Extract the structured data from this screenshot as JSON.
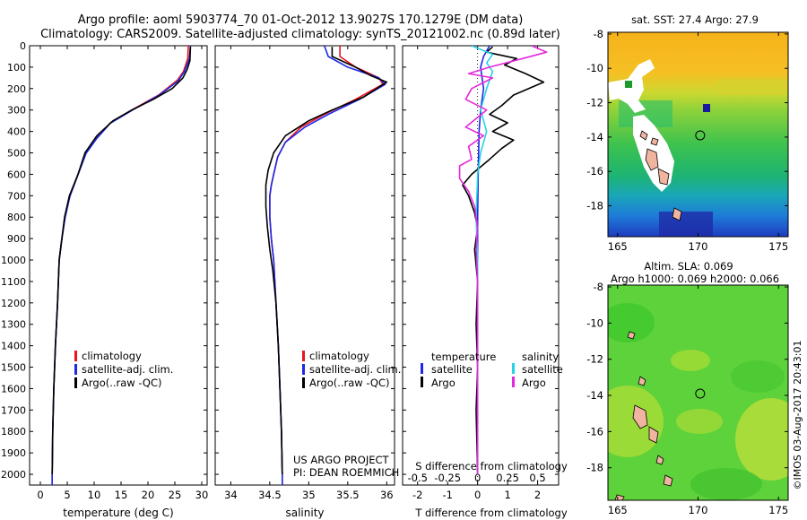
{
  "title_line1": "Argo profile: aoml 5903774_70 01-Oct-2012 13.9027S 170.1279E (DM data)",
  "title_line2": "Climatology: CARS2009. Satellite-adjusted climatology: synTS_20121002.nc (0.89d later)",
  "credit_project": "US ARGO PROJECT",
  "credit_pi": "PI: DEAN ROEMMICH",
  "imos_stamp": "©IMOS 03-Aug-2017 20:43:01",
  "colors": {
    "climatology": "#e8141e",
    "satellite": "#1e28e6",
    "argo": "#000000",
    "argo_salinity_diff": "#e628dc",
    "satellite_salinity_diff": "#28d2e6"
  },
  "chart_data": [
    {
      "type": "line",
      "name": "temperature-profile",
      "xlabel": "temperature (deg C)",
      "xlim": [
        -2,
        31
      ],
      "xticks": [
        0,
        5,
        10,
        15,
        20,
        25,
        30
      ],
      "xtick_labels": [
        "0",
        "5",
        "10",
        "15",
        "20",
        "25",
        "30"
      ],
      "ylim": [
        0,
        2050
      ],
      "yticks": [
        0,
        100,
        200,
        300,
        400,
        500,
        600,
        700,
        800,
        900,
        1000,
        1100,
        1200,
        1300,
        1400,
        1500,
        1600,
        1700,
        1800,
        1900,
        2000
      ],
      "ytick_labels": [
        "0",
        "100",
        "200",
        "300",
        "400",
        "500",
        "600",
        "700",
        "800",
        "900",
        "1000",
        "1100",
        "1200",
        "1300",
        "1400",
        "1500",
        "1600",
        "1700",
        "1800",
        "1900",
        "2000"
      ],
      "yreversed": true,
      "legend": [
        "climatology",
        "satellite-adj. clim.",
        "Argo(..raw -QC)"
      ],
      "series": [
        {
          "name": "climatology",
          "color_key": "climatology",
          "points": [
            [
              27.5,
              0
            ],
            [
              27.4,
              60
            ],
            [
              26.6,
              120
            ],
            [
              25.5,
              160
            ],
            [
              22,
              230
            ],
            [
              17,
              300
            ],
            [
              13,
              360
            ],
            [
              10.5,
              430
            ],
            [
              8.5,
              500
            ],
            [
              7,
              600
            ],
            [
              5.5,
              700
            ],
            [
              4.6,
              800
            ],
            [
              4,
              900
            ],
            [
              3.5,
              1000
            ],
            [
              3.2,
              1200
            ],
            [
              2.8,
              1400
            ],
            [
              2.5,
              1600
            ],
            [
              2.3,
              1800
            ],
            [
              2.2,
              2000
            ],
            [
              2.2,
              2050
            ]
          ]
        },
        {
          "name": "satellite-adj. clim.",
          "color_key": "satellite",
          "points": [
            [
              27.9,
              0
            ],
            [
              27.7,
              60
            ],
            [
              26.8,
              120
            ],
            [
              25.6,
              165
            ],
            [
              22,
              232
            ],
            [
              17,
              302
            ],
            [
              13,
              362
            ],
            [
              10.5,
              432
            ],
            [
              8.5,
              502
            ],
            [
              7,
              602
            ],
            [
              5.5,
              702
            ],
            [
              4.6,
              802
            ],
            [
              4,
              902
            ],
            [
              3.5,
              1002
            ],
            [
              3.2,
              1200
            ],
            [
              2.8,
              1400
            ],
            [
              2.5,
              1600
            ],
            [
              2.3,
              1800
            ],
            [
              2.2,
              2000
            ],
            [
              2.2,
              2050
            ]
          ]
        },
        {
          "name": "Argo(..raw -QC)",
          "color_key": "argo",
          "points": [
            [
              27.9,
              5
            ],
            [
              27.8,
              70
            ],
            [
              27.3,
              110
            ],
            [
              26.5,
              150
            ],
            [
              24.5,
              200
            ],
            [
              21,
              250
            ],
            [
              17,
              300
            ],
            [
              13.5,
              350
            ],
            [
              10.5,
              420
            ],
            [
              8.3,
              500
            ],
            [
              7,
              600
            ],
            [
              5.4,
              700
            ],
            [
              4.5,
              800
            ],
            [
              4,
              900
            ],
            [
              3.5,
              1000
            ],
            [
              3.2,
              1200
            ],
            [
              2.8,
              1400
            ],
            [
              2.5,
              1600
            ],
            [
              2.3,
              1800
            ],
            [
              2.2,
              2000
            ]
          ]
        }
      ]
    },
    {
      "type": "line",
      "name": "salinity-profile",
      "xlabel": "salinity",
      "xlim": [
        33.8,
        36.1
      ],
      "xticks": [
        34,
        34.5,
        35,
        35.5,
        36
      ],
      "xtick_labels": [
        "34",
        "34.5",
        "35",
        "35.5",
        "36"
      ],
      "ylim": [
        0,
        2050
      ],
      "yreversed": true,
      "legend": [
        "climatology",
        "satellite-adj. clim.",
        "Argo(..raw -QC)"
      ],
      "series": [
        {
          "name": "climatology",
          "color_key": "climatology",
          "points": [
            [
              35.4,
              0
            ],
            [
              35.4,
              50
            ],
            [
              35.6,
              100
            ],
            [
              35.9,
              150
            ],
            [
              35.95,
              180
            ],
            [
              35.6,
              250
            ],
            [
              35.2,
              320
            ],
            [
              34.9,
              380
            ],
            [
              34.7,
              450
            ],
            [
              34.6,
              520
            ],
            [
              34.55,
              600
            ],
            [
              34.52,
              650
            ],
            [
              34.5,
              700
            ],
            [
              34.5,
              800
            ],
            [
              34.52,
              900
            ],
            [
              34.55,
              1000
            ],
            [
              34.58,
              1200
            ],
            [
              34.61,
              1400
            ],
            [
              34.63,
              1600
            ],
            [
              34.65,
              1800
            ],
            [
              34.66,
              2000
            ],
            [
              34.66,
              2050
            ]
          ]
        },
        {
          "name": "satellite-adj. clim.",
          "color_key": "satellite",
          "points": [
            [
              35.2,
              0
            ],
            [
              35.25,
              50
            ],
            [
              35.5,
              100
            ],
            [
              35.9,
              150
            ],
            [
              35.98,
              180
            ],
            [
              35.65,
              250
            ],
            [
              35.25,
              320
            ],
            [
              34.95,
              380
            ],
            [
              34.7,
              450
            ],
            [
              34.6,
              520
            ],
            [
              34.55,
              600
            ],
            [
              34.52,
              650
            ],
            [
              34.5,
              700
            ],
            [
              34.5,
              800
            ],
            [
              34.52,
              900
            ],
            [
              34.55,
              1000
            ],
            [
              34.58,
              1200
            ],
            [
              34.61,
              1400
            ],
            [
              34.63,
              1600
            ],
            [
              34.65,
              1800
            ],
            [
              34.66,
              2000
            ],
            [
              34.66,
              2050
            ]
          ]
        },
        {
          "name": "Argo(..raw -QC)",
          "color_key": "argo",
          "points": [
            [
              35.3,
              5
            ],
            [
              35.3,
              50
            ],
            [
              35.6,
              100
            ],
            [
              35.8,
              140
            ],
            [
              36,
              170
            ],
            [
              35.7,
              240
            ],
            [
              35.3,
              300
            ],
            [
              35.0,
              350
            ],
            [
              34.7,
              420
            ],
            [
              34.55,
              500
            ],
            [
              34.48,
              580
            ],
            [
              34.45,
              650
            ],
            [
              34.45,
              750
            ],
            [
              34.47,
              850
            ],
            [
              34.5,
              950
            ],
            [
              34.54,
              1050
            ],
            [
              34.58,
              1200
            ],
            [
              34.61,
              1400
            ],
            [
              34.63,
              1600
            ],
            [
              34.65,
              1800
            ],
            [
              34.66,
              2000
            ]
          ]
        }
      ]
    },
    {
      "type": "line",
      "name": "difference-profile",
      "xlabel": "T difference from climatology",
      "x2label": "S difference from climatology",
      "xlim": [
        -2.5,
        2.7
      ],
      "xticks": [
        -2,
        -1,
        0,
        1,
        2
      ],
      "xtick_labels": [
        "-2",
        "-1",
        "0",
        "1",
        "2"
      ],
      "x2ticks": [
        -2,
        -1,
        0,
        1,
        2
      ],
      "x2tick_labels": [
        "-0.5",
        "-0.25",
        "0",
        "0.25",
        "0.5"
      ],
      "ylim": [
        0,
        2050
      ],
      "yreversed": true,
      "legend_groups": [
        {
          "title": "temperature",
          "entries": [
            "satellite",
            "Argo"
          ]
        },
        {
          "title": "salinity",
          "entries": [
            "satellite",
            "Argo"
          ]
        }
      ],
      "series": [
        {
          "name": "temperature satellite",
          "color_key": "satellite",
          "points": [
            [
              0.4,
              0
            ],
            [
              0.2,
              50
            ],
            [
              0.1,
              100
            ],
            [
              0.2,
              200
            ],
            [
              0.1,
              300
            ],
            [
              0.05,
              400
            ],
            [
              0.02,
              600
            ],
            [
              0,
              800
            ],
            [
              0,
              1200
            ],
            [
              0,
              2000
            ]
          ]
        },
        {
          "name": "temperature Argo",
          "color_key": "argo",
          "points": [
            [
              0.5,
              5
            ],
            [
              0.3,
              30
            ],
            [
              1.3,
              60
            ],
            [
              0.9,
              90
            ],
            [
              1.6,
              130
            ],
            [
              2.2,
              170
            ],
            [
              1.2,
              230
            ],
            [
              0.8,
              280
            ],
            [
              0.4,
              320
            ],
            [
              1.0,
              360
            ],
            [
              0.5,
              400
            ],
            [
              1.2,
              440
            ],
            [
              0.8,
              480
            ],
            [
              0.4,
              530
            ],
            [
              -0.2,
              600
            ],
            [
              -0.5,
              650
            ],
            [
              -0.3,
              700
            ],
            [
              -0.1,
              780
            ],
            [
              0,
              850
            ],
            [
              -0.1,
              950
            ],
            [
              0,
              1100
            ],
            [
              -0.05,
              1300
            ],
            [
              0,
              1500
            ],
            [
              -0.05,
              1700
            ],
            [
              0,
              2000
            ]
          ]
        },
        {
          "name": "salinity satellite",
          "color_key": "satellite_salinity_diff",
          "points": [
            [
              -0.2,
              0
            ],
            [
              0.5,
              40
            ],
            [
              0.3,
              80
            ],
            [
              0.5,
              120
            ],
            [
              0.3,
              200
            ],
            [
              0.1,
              300
            ],
            [
              0.3,
              400
            ],
            [
              0.1,
              500
            ],
            [
              0,
              600
            ],
            [
              -0.05,
              800
            ],
            [
              0,
              1000
            ],
            [
              0,
              2000
            ]
          ]
        },
        {
          "name": "salinity Argo",
          "color_key": "argo_salinity_diff",
          "points": [
            [
              1.8,
              0
            ],
            [
              2.3,
              30
            ],
            [
              1.5,
              60
            ],
            [
              0.4,
              100
            ],
            [
              -0.3,
              130
            ],
            [
              0.5,
              150
            ],
            [
              -0.2,
              200
            ],
            [
              -0.4,
              250
            ],
            [
              0.3,
              300
            ],
            [
              -0.4,
              380
            ],
            [
              0.2,
              420
            ],
            [
              -0.3,
              470
            ],
            [
              -0.2,
              530
            ],
            [
              -0.6,
              560
            ],
            [
              -0.6,
              620
            ],
            [
              -0.3,
              680
            ],
            [
              -0.1,
              750
            ],
            [
              0,
              850
            ],
            [
              -0.05,
              950
            ],
            [
              0,
              1100
            ],
            [
              0,
              2000
            ]
          ]
        }
      ]
    },
    {
      "type": "heatmap",
      "name": "sst-map",
      "title": "sat. SST: 27.4  Argo: 27.9",
      "xlim": [
        164.4,
        175.6
      ],
      "ylim": [
        -19.8,
        -7.9
      ],
      "xticks": [
        165,
        170,
        175
      ],
      "xtick_labels": [
        "165",
        "170",
        "175"
      ],
      "yticks": [
        -8,
        -10,
        -12,
        -14,
        -16,
        -18
      ],
      "ytick_labels": [
        "-8",
        "-10",
        "-12",
        "-14",
        "-16",
        "-18"
      ],
      "argo_position": [
        170.13,
        -13.9
      ]
    },
    {
      "type": "heatmap",
      "name": "sla-map",
      "title_line1": "Altim. SLA: 0.069",
      "title_line2": "Argo h1000: 0.069 h2000: 0.066",
      "xlim": [
        164.4,
        175.6
      ],
      "ylim": [
        -19.8,
        -7.9
      ],
      "xticks": [
        165,
        170,
        175
      ],
      "xtick_labels": [
        "165",
        "170",
        "175"
      ],
      "yticks": [
        -8,
        -10,
        -12,
        -14,
        -16,
        -18
      ],
      "ytick_labels": [
        "-8",
        "-10",
        "-12",
        "-14",
        "-16",
        "-18"
      ],
      "argo_position": [
        170.13,
        -13.9
      ]
    }
  ]
}
